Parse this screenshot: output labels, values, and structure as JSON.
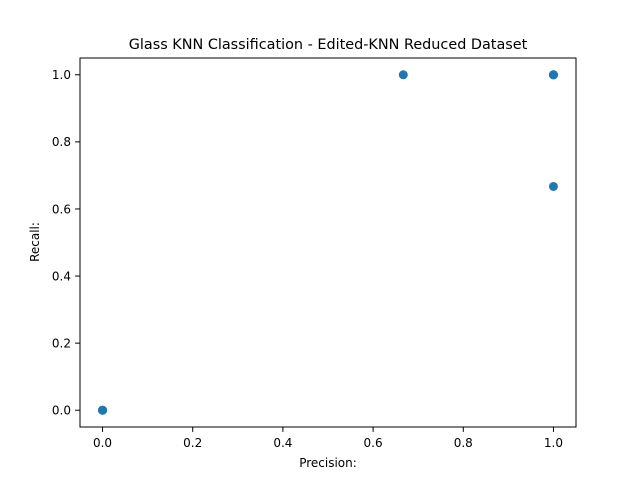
{
  "chart_data": {
    "type": "scatter",
    "title": "Glass KNN Classification - Edited-KNN Reduced Dataset",
    "xlabel": "Precision:",
    "ylabel": "Recall:",
    "xlim": [
      -0.05,
      1.05
    ],
    "ylim": [
      -0.05,
      1.05
    ],
    "xticks": [
      0.0,
      0.2,
      0.4,
      0.6,
      0.8,
      1.0
    ],
    "yticks": [
      0.0,
      0.2,
      0.4,
      0.6,
      0.8,
      1.0
    ],
    "xtick_labels": [
      "0.0",
      "0.2",
      "0.4",
      "0.6",
      "0.8",
      "1.0"
    ],
    "ytick_labels": [
      "0.0",
      "0.2",
      "0.4",
      "0.6",
      "0.8",
      "1.0"
    ],
    "grid": false,
    "marker_color": "#1f77b4",
    "points": [
      {
        "x": 0.0,
        "y": 0.0
      },
      {
        "x": 0.0,
        "y": 0.0
      },
      {
        "x": 0.0,
        "y": 0.0
      },
      {
        "x": 0.667,
        "y": 1.0
      },
      {
        "x": 1.0,
        "y": 1.0
      },
      {
        "x": 1.0,
        "y": 1.0
      },
      {
        "x": 1.0,
        "y": 1.0
      },
      {
        "x": 1.0,
        "y": 0.667
      }
    ]
  }
}
